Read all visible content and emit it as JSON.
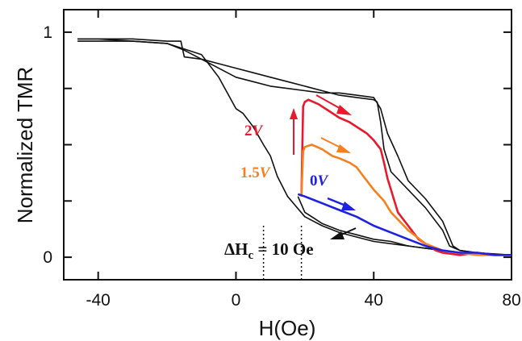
{
  "chart_data": {
    "type": "line",
    "title": "",
    "xlabel": "H(Oe)",
    "ylabel": "Normalized TMR",
    "xlim": [
      -50,
      80
    ],
    "ylim": [
      -0.1,
      1.1
    ],
    "x_ticks": [
      -40,
      0,
      40,
      80
    ],
    "y_ticks": [
      0,
      1
    ],
    "y_minor_ticks": [
      0.25,
      0.5,
      0.75
    ],
    "grid": false,
    "colors": {
      "black": "#111111",
      "red": "#e8192c",
      "orange": "#f7801e",
      "blue": "#1e22e0"
    },
    "series": [
      {
        "color": "black",
        "x": [
          -46,
          -40,
          -30,
          -20,
          -16,
          -15,
          -10,
          -5,
          0,
          5,
          10,
          15,
          20,
          25,
          30,
          35,
          40,
          41,
          42,
          43,
          45,
          50,
          55,
          60,
          62,
          65,
          70,
          75,
          80
        ],
        "y": [
          0.97,
          0.97,
          0.97,
          0.96,
          0.96,
          0.89,
          0.88,
          0.86,
          0.84,
          0.82,
          0.8,
          0.78,
          0.76,
          0.74,
          0.72,
          0.71,
          0.7,
          0.69,
          0.6,
          0.48,
          0.38,
          0.3,
          0.22,
          0.12,
          0.05,
          0.03,
          0.02,
          0.01,
          0.01
        ]
      },
      {
        "color": "black",
        "x": [
          -46,
          -40,
          -30,
          -20,
          -15,
          -10,
          -5,
          0,
          5,
          10,
          15,
          20,
          25,
          30,
          35,
          40,
          42,
          44,
          47,
          50,
          55,
          60,
          63,
          65,
          70,
          80
        ],
        "y": [
          0.96,
          0.96,
          0.96,
          0.95,
          0.92,
          0.88,
          0.84,
          0.8,
          0.78,
          0.76,
          0.75,
          0.74,
          0.73,
          0.73,
          0.72,
          0.71,
          0.66,
          0.55,
          0.45,
          0.34,
          0.26,
          0.16,
          0.05,
          0.03,
          0.02,
          0.01
        ]
      },
      {
        "color": "black",
        "x": [
          -46,
          -40,
          -30,
          -20,
          -10,
          -5,
          0,
          2,
          5,
          8,
          10,
          12,
          15,
          20,
          25,
          30,
          35,
          40,
          45,
          50,
          55,
          60,
          65,
          70,
          75,
          80
        ],
        "y": [
          0.97,
          0.97,
          0.96,
          0.95,
          0.9,
          0.8,
          0.66,
          0.64,
          0.58,
          0.5,
          0.45,
          0.36,
          0.27,
          0.18,
          0.14,
          0.11,
          0.09,
          0.07,
          0.06,
          0.05,
          0.04,
          0.03,
          0.02,
          0.02,
          0.01,
          0.01
        ]
      },
      {
        "color": "black",
        "x": [
          18,
          20,
          25,
          30,
          35,
          40,
          45,
          50,
          55,
          60,
          65,
          70,
          75,
          80
        ],
        "y": [
          0.27,
          0.2,
          0.15,
          0.12,
          0.1,
          0.08,
          0.07,
          0.05,
          0.04,
          0.03,
          0.02,
          0.02,
          0.01,
          0.01
        ]
      },
      {
        "name": "2V",
        "color": "red",
        "x": [
          19,
          19.5,
          20,
          21,
          24,
          27,
          30,
          33,
          36,
          38,
          40,
          42,
          43,
          44,
          45,
          47,
          50,
          53,
          55,
          58,
          60,
          65,
          70,
          75,
          80
        ],
        "y": [
          0.27,
          0.67,
          0.69,
          0.7,
          0.68,
          0.65,
          0.62,
          0.6,
          0.57,
          0.55,
          0.52,
          0.48,
          0.42,
          0.35,
          0.3,
          0.2,
          0.14,
          0.08,
          0.06,
          0.03,
          0.02,
          0.01,
          0.02,
          0.01,
          0.01
        ]
      },
      {
        "name": "1.5V",
        "color": "orange",
        "x": [
          19,
          19.5,
          20,
          22,
          25,
          28,
          30,
          33,
          35,
          37,
          40,
          43,
          45,
          50,
          55,
          60,
          65,
          70,
          75,
          80
        ],
        "y": [
          0.27,
          0.47,
          0.49,
          0.5,
          0.48,
          0.45,
          0.44,
          0.42,
          0.4,
          0.36,
          0.3,
          0.25,
          0.2,
          0.12,
          0.06,
          0.03,
          0.02,
          0.01,
          0.01,
          0.01
        ]
      },
      {
        "name": "0V",
        "color": "blue",
        "x": [
          18,
          20,
          25,
          30,
          35,
          40,
          45,
          50,
          55,
          60,
          65,
          70,
          75,
          80
        ],
        "y": [
          0.28,
          0.27,
          0.24,
          0.21,
          0.18,
          0.14,
          0.11,
          0.08,
          0.05,
          0.03,
          0.02,
          0.02,
          0.01,
          0.01
        ]
      }
    ],
    "annotations": {
      "label_2v_number": "2",
      "label_2v_unit": "V",
      "label_15v_number": "1.5",
      "label_15v_unit": "V",
      "label_0v_number": "0",
      "label_0v_unit": "V",
      "formula_prefix": "ΔH",
      "formula_sub": "c",
      "formula_rest": " = 10 Oe"
    },
    "coercivity_markers_x": [
      8,
      19
    ]
  }
}
